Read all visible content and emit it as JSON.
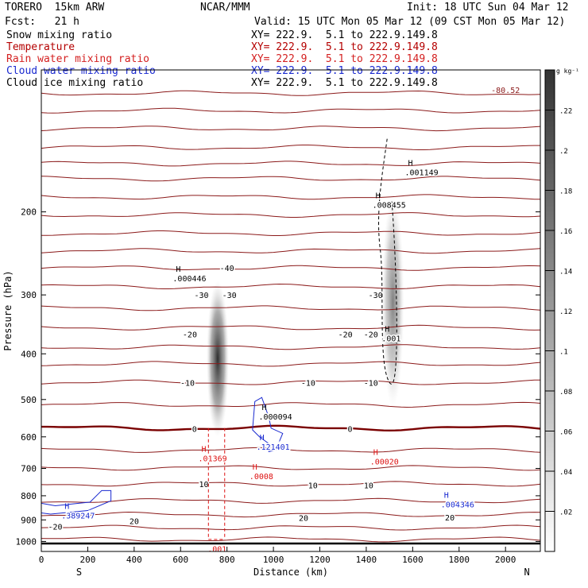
{
  "header": {
    "model": "TORERO  15km ARW",
    "center": "NCAR/MMM",
    "init": "Init: 18 UTC Sun 04 Mar 12",
    "fcst": "Fcst:   21 h",
    "valid": "Valid: 15 UTC Mon 05 Mar 12 (09 CST Mon 05 Mar 12)"
  },
  "fields": [
    {
      "name": "Snow mixing ratio",
      "xy": "XY= 222.9.  5.1 to 222.9.149.8",
      "color": "#000000"
    },
    {
      "name": "Temperature",
      "xy": "XY= 222.9.  5.1 to 222.9.149.8",
      "color": "#b40000"
    },
    {
      "name": "Rain water mixing ratio",
      "xy": "XY= 222.9.  5.1 to 222.9.149.8",
      "color": "#d42020"
    },
    {
      "name": "Cloud water mixing ratio",
      "xy": "XY= 222.9.  5.1 to 222.9.149.8",
      "color": "#1a2ad0"
    },
    {
      "name": "Cloud ice mixing ratio",
      "xy": "XY= 222.9.  5.1 to 222.9.149.8",
      "color": "#000000"
    }
  ],
  "colors": {
    "temperature": "#8b1a1a",
    "freezing_line": "#7a0000",
    "rain": "#dd1111",
    "cloud_water": "#1a2ad0",
    "cloud_ice": "#000000",
    "ground": "#000000"
  },
  "chart_data": {
    "type": "contour cross-section",
    "xlabel": "Distance (km)",
    "ylabel": "Pressure (hPa)",
    "xlim": [
      0,
      2150
    ],
    "ylim": [
      1050,
      100
    ],
    "y_scale": "log",
    "x_ticks": [
      0,
      200,
      400,
      600,
      800,
      1000,
      1200,
      1400,
      1600,
      1800,
      2000
    ],
    "x_tick_labels": [
      "0",
      "200",
      "400",
      "600",
      "800",
      "1000",
      "1200",
      "1400",
      "1600",
      "1800",
      "2000"
    ],
    "y_ticks": [
      200,
      300,
      400,
      500,
      600,
      700,
      800,
      900,
      1000
    ],
    "y_tick_labels": [
      "200",
      "300",
      "400",
      "500",
      "600",
      "700",
      "800",
      "900",
      "1000"
    ],
    "left_end_label": "S",
    "right_end_label": "N",
    "ground_pressure": 1010,
    "top_corner_value": "-80.52",
    "colorbar": {
      "unit": "g kg⁻¹",
      "vmin": 0,
      "vmax": 0.24,
      "ticks": [
        0.02,
        0.04,
        0.06,
        0.08,
        0.1,
        0.12,
        0.14,
        0.16,
        0.18,
        0.2,
        0.22
      ],
      "tick_labels": [
        ".02",
        ".04",
        ".06",
        ".08",
        ".1",
        ".12",
        ".14",
        ".16",
        ".18",
        ".2",
        ".22"
      ]
    },
    "isotherm_pressures": [
      112,
      122,
      133,
      146,
      158,
      170,
      186,
      203,
      222,
      242,
      263,
      288,
      320,
      352,
      387,
      420,
      460,
      513,
      575,
      640,
      698,
      755,
      820,
      877,
      935,
      990
    ],
    "isotherm_labels": [
      {
        "text": "-40",
        "x": 800,
        "p": 263
      },
      {
        "text": "-30",
        "x": 690,
        "p": 300
      },
      {
        "text": "-30",
        "x": 810,
        "p": 300
      },
      {
        "text": "-30",
        "x": 1440,
        "p": 300
      },
      {
        "text": "-20",
        "x": 640,
        "p": 363
      },
      {
        "text": "-20",
        "x": 1310,
        "p": 363
      },
      {
        "text": "-20",
        "x": 1420,
        "p": 363
      },
      {
        "text": "-10",
        "x": 630,
        "p": 460
      },
      {
        "text": "-10",
        "x": 1150,
        "p": 460
      },
      {
        "text": "-10",
        "x": 1420,
        "p": 460
      },
      {
        "text": "0",
        "x": 660,
        "p": 577
      },
      {
        "text": "0",
        "x": 1330,
        "p": 577
      },
      {
        "text": "10",
        "x": 700,
        "p": 755
      },
      {
        "text": "10",
        "x": 1170,
        "p": 760
      },
      {
        "text": "10",
        "x": 1410,
        "p": 760
      },
      {
        "text": "20",
        "x": 400,
        "p": 905
      },
      {
        "text": "20",
        "x": 1130,
        "p": 890
      },
      {
        "text": "20",
        "x": 1760,
        "p": 888
      },
      {
        "text": "-20",
        "x": 60,
        "p": 930
      }
    ],
    "snow_cores": [
      {
        "x": 760,
        "p_top": 280,
        "p_bottom": 600,
        "max": 0.2
      },
      {
        "x": 1515,
        "p_top": 185,
        "p_bottom": 520,
        "max": 0.12
      }
    ],
    "rain_region": {
      "x1": 720,
      "x2": 790,
      "p_top": 575,
      "p_bottom": 990
    },
    "extrema": [
      {
        "kind": "H",
        "value": ".000446",
        "x": 580,
        "p": 272,
        "field": "cloud_ice"
      },
      {
        "kind": "H",
        "value": ".008455",
        "x": 1440,
        "p": 190,
        "field": "cloud_ice"
      },
      {
        "kind": "H",
        "value": ".001149",
        "x": 1580,
        "p": 162,
        "field": "cloud_ice"
      },
      {
        "kind": "H",
        "value": ".001",
        "x": 1480,
        "p": 365,
        "field": "cloud_ice"
      },
      {
        "kind": "H",
        "value": ".000094",
        "x": 950,
        "p": 535,
        "field": "snow"
      },
      {
        "kind": "H",
        "value": ".121401",
        "x": 940,
        "p": 620,
        "field": "cloud_water"
      },
      {
        "kind": "H",
        "value": ".01369",
        "x": 690,
        "p": 655,
        "field": "rain"
      },
      {
        "kind": "H",
        "value": ".0008",
        "x": 910,
        "p": 715,
        "field": "rain"
      },
      {
        "kind": "H",
        "value": ".00020",
        "x": 1430,
        "p": 665,
        "field": "rain"
      },
      {
        "kind": "H",
        "value": ".004346",
        "x": 1735,
        "p": 820,
        "field": "cloud_water"
      },
      {
        "kind": "H",
        "value": ".389247",
        "x": 100,
        "p": 867,
        "field": "cloud_water"
      },
      {
        "kind": "",
        "value": ".001",
        "x": 730,
        "p": 1020,
        "field": "rain"
      }
    ]
  }
}
